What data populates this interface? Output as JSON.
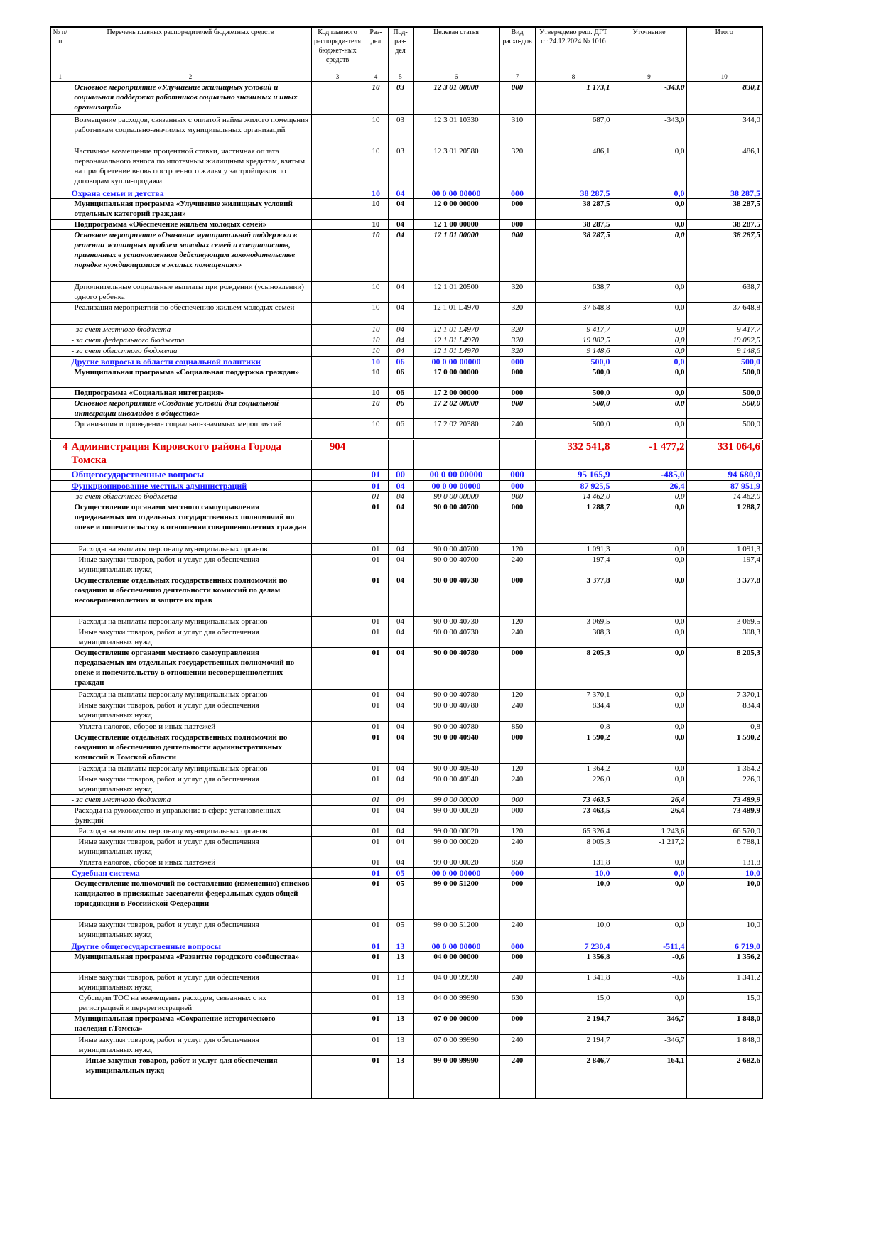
{
  "header": {
    "columns": [
      "№ п/п",
      "Перечень главных распорядителей бюджетных средств",
      "Код главного распоряди-теля бюджет-ных средств",
      "Раз-дел",
      "Под-раз-дел",
      "Целевая статья",
      "Вид расхо-дов",
      "Утверждено реш. ДГТ от 24.12.2024 № 1016",
      "Уточнение",
      "Итого"
    ],
    "numbers": [
      1,
      2,
      3,
      4,
      5,
      6,
      7,
      8,
      9,
      10
    ]
  },
  "rows": [
    {
      "style": "bolditalic",
      "cells": [
        null,
        "Основное мероприятие «Улучшение жилищных условий и социальная поддержка работников социально значимых и иных организаций»",
        null,
        "10",
        "03",
        "12 3 01 00000",
        "000",
        "1 173,1",
        "-343,0",
        "830,1"
      ]
    },
    {
      "style": "plain",
      "cells": [
        null,
        "Возмещение расходов, связанных с оплатой найма жилого помещения работникам социально-значимых муниципальных организаций",
        null,
        "10",
        "03",
        "12 3 01 10330",
        "310",
        "687,0",
        "-343,0",
        "344,0"
      ]
    },
    {
      "style": "plain",
      "cells": [
        null,
        "Частичное возмещение процентной ставки, частичная оплата первоначального взноса по ипотечным жилищным кредитам, взятым на приобретение вновь построенного жилья у застройщиков по договорам купли-продажи",
        null,
        "10",
        "03",
        "12 3 01 20580",
        "320",
        "486,1",
        "0,0",
        "486,1"
      ]
    },
    {
      "style": "section",
      "cells": [
        null,
        "Охрана семьи и детства",
        null,
        "10",
        "04",
        "00 0 00 00000",
        "000",
        "38 287,5",
        "0,0",
        "38 287,5"
      ]
    },
    {
      "style": "bold",
      "cells": [
        null,
        "Муниципальная программа «Улучшение жилищных условий отдельных категорий граждан»",
        null,
        "10",
        "04",
        "12 0 00 00000",
        "000",
        "38 287,5",
        "0,0",
        "38 287,5"
      ]
    },
    {
      "style": "bold",
      "cells": [
        null,
        "Подпрограмма «Обеспечение жильём молодых семей»",
        null,
        "10",
        "04",
        "12 1 00 00000",
        "000",
        "38 287,5",
        "0,0",
        "38 287,5"
      ]
    },
    {
      "style": "bolditalic",
      "cells": [
        null,
        "Основное мероприятие «Оказание муниципальной поддержки в решении жилищных проблем молодых семей и специалистов, признанных в установленном действующим законодательстве порядке нуждающимися в жилых помещениях»",
        null,
        "10",
        "04",
        "12 1 01 00000",
        "000",
        "38 287,5",
        "0,0",
        "38 287,5"
      ]
    },
    {
      "style": "plain",
      "cells": [
        null,
        "Дополнительные социальные выплаты при рождении (усыновлении) одного ребенка",
        null,
        "10",
        "04",
        "12 1 01 20500",
        "320",
        "638,7",
        "0,0",
        "638,7"
      ]
    },
    {
      "style": "plain",
      "cells": [
        null,
        "Реализация мероприятий по обеспечению жильем молодых семей",
        null,
        "10",
        "04",
        "12 1 01 L4970",
        "320",
        "37 648,8",
        "0,0",
        "37 648,8"
      ]
    },
    {
      "style": "italic",
      "cells": [
        null,
        "- за счет местного бюджета",
        null,
        "10",
        "04",
        "12 1 01 L4970",
        "320",
        "9 417,7",
        "0,0",
        "9 417,7"
      ]
    },
    {
      "style": "italic",
      "cells": [
        null,
        "- за счет федерального бюджета",
        null,
        "10",
        "04",
        "12 1 01 L4970",
        "320",
        "19 082,5",
        "0,0",
        "19 082,5"
      ]
    },
    {
      "style": "italic",
      "cells": [
        null,
        "- за счет областного бюджета",
        null,
        "10",
        "04",
        "12 1 01 L4970",
        "320",
        "9 148,6",
        "0,0",
        "9 148,6"
      ]
    },
    {
      "style": "section",
      "cells": [
        null,
        "Другие вопросы в области социальной политики",
        null,
        "10",
        "06",
        "00 0 00 00000",
        "000",
        "500,0",
        "0,0",
        "500,0"
      ]
    },
    {
      "style": "bold",
      "cells": [
        null,
        "Муниципальная программа «Социальная поддержка граждан»",
        null,
        "10",
        "06",
        "17 0 00 00000",
        "000",
        "500,0",
        "0,0",
        "500,0"
      ]
    },
    {
      "style": "bold",
      "cells": [
        null,
        "Подпрограмма «Социальная интеграция»",
        null,
        "10",
        "06",
        "17 2 00 00000",
        "000",
        "500,0",
        "0,0",
        "500,0"
      ]
    },
    {
      "style": "bolditalic",
      "cells": [
        null,
        "Основное мероприятие «Создание условий для социальной интеграции инвалидов в общество»",
        null,
        "10",
        "06",
        "17 2 02 00000",
        "000",
        "500,0",
        "0,0",
        "500,0"
      ]
    },
    {
      "style": "plain",
      "cells": [
        null,
        "Организация и проведение социально-значимых мероприятий",
        null,
        "10",
        "06",
        "17 2 02 20380",
        "240",
        "500,0",
        "0,0",
        "500,0"
      ]
    },
    {
      "style": "agency",
      "cells": [
        "4",
        "Администрация Кировского района Города Томска",
        "904",
        null,
        null,
        null,
        null,
        "332 541,8",
        "-1 477,2",
        "331 064,6"
      ]
    },
    {
      "style": "section-big",
      "cells": [
        null,
        "Общегосударственные вопросы",
        null,
        "01",
        "00",
        "00 0 00 00000",
        "000",
        "95 165,9",
        "-485,0",
        "94 680,9"
      ]
    },
    {
      "style": "section",
      "cells": [
        null,
        "Функционирование местных администраций",
        null,
        "01",
        "04",
        "00 0 00 00000",
        "000",
        "87 925,5",
        "26,4",
        "87 951,9"
      ]
    },
    {
      "style": "italic",
      "cells": [
        null,
        "- за счет областного бюджета",
        null,
        "01",
        "04",
        "90 0 00 00000",
        "000",
        "14 462,0",
        "0,0",
        "14 462,0"
      ]
    },
    {
      "style": "bold",
      "cells": [
        null,
        "Осуществление органами местного самоуправления передаваемых им отдельных государственных полномочий по опеке и попечительству в отношении совершеннолетних граждан",
        null,
        "01",
        "04",
        "90 0 00 40700",
        "000",
        "1 288,7",
        "0,0",
        "1 288,7"
      ]
    },
    {
      "style": "plain2",
      "cells": [
        null,
        "Расходы на выплаты персоналу муниципальных органов",
        null,
        "01",
        "04",
        "90 0 00 40700",
        "120",
        "1 091,3",
        "0,0",
        "1 091,3"
      ]
    },
    {
      "style": "plain2",
      "cells": [
        null,
        "Иные закупки товаров, работ и услуг для обеспечения муниципальных нужд",
        null,
        "01",
        "04",
        "90 0 00 40700",
        "240",
        "197,4",
        "0,0",
        "197,4"
      ]
    },
    {
      "style": "bold",
      "cells": [
        null,
        "Осуществление отдельных государственных полномочий по созданию и обеспечению деятельности комиссий по делам несовершеннолетних и защите их прав",
        null,
        "01",
        "04",
        "90 0 00 40730",
        "000",
        "3 377,8",
        "0,0",
        "3 377,8"
      ]
    },
    {
      "style": "plain2",
      "cells": [
        null,
        "Расходы на выплаты персоналу муниципальных органов",
        null,
        "01",
        "04",
        "90 0 00 40730",
        "120",
        "3 069,5",
        "0,0",
        "3 069,5"
      ]
    },
    {
      "style": "plain2",
      "cells": [
        null,
        "Иные закупки товаров, работ и услуг для обеспечения муниципальных нужд",
        null,
        "01",
        "04",
        "90 0 00 40730",
        "240",
        "308,3",
        "0,0",
        "308,3"
      ]
    },
    {
      "style": "bold",
      "cells": [
        null,
        "Осуществление органами местного самоуправления передаваемых им отдельных государственных полномочий по опеке и попечительству в отношении несовершеннолетних граждан",
        null,
        "01",
        "04",
        "90 0 00 40780",
        "000",
        "8 205,3",
        "0,0",
        "8 205,3"
      ]
    },
    {
      "style": "plain2",
      "cells": [
        null,
        "Расходы на выплаты персоналу муниципальных органов",
        null,
        "01",
        "04",
        "90 0 00 40780",
        "120",
        "7 370,1",
        "0,0",
        "7 370,1"
      ]
    },
    {
      "style": "plain2",
      "cells": [
        null,
        "Иные закупки товаров, работ и услуг для обеспечения муниципальных нужд",
        null,
        "01",
        "04",
        "90 0 00 40780",
        "240",
        "834,4",
        "0,0",
        "834,4"
      ]
    },
    {
      "style": "plain2",
      "cells": [
        null,
        "Уплата налогов, сборов и иных платежей",
        null,
        "01",
        "04",
        "90 0 00 40780",
        "850",
        "0,8",
        "0,0",
        "0,8"
      ]
    },
    {
      "style": "bold",
      "cells": [
        null,
        "Осуществление отдельных государственных полномочий по созданию и обеспечению деятельности административных комиссий в Томской области",
        null,
        "01",
        "04",
        "90 0 00 40940",
        "000",
        "1 590,2",
        "0,0",
        "1 590,2"
      ]
    },
    {
      "style": "plain2",
      "cells": [
        null,
        "Расходы на выплаты персоналу муниципальных органов",
        null,
        "01",
        "04",
        "90 0 00 40940",
        "120",
        "1 364,2",
        "0,0",
        "1 364,2"
      ]
    },
    {
      "style": "plain2",
      "cells": [
        null,
        "Иные закупки товаров, работ и услуг для обеспечения муниципальных нужд",
        null,
        "01",
        "04",
        "90 0 00 40940",
        "240",
        "226,0",
        "0,0",
        "226,0"
      ]
    },
    {
      "style": "italic-sum",
      "cells": [
        null,
        "- за счет местного бюджета",
        null,
        "01",
        "04",
        "99 0 00 00000",
        "000",
        "73 463,5",
        "26,4",
        "73 489,9"
      ]
    },
    {
      "style": "plain-sum",
      "cells": [
        null,
        "Расходы на руководство и управление в сфере установленных функций",
        null,
        "01",
        "04",
        "99 0 00 00020",
        "000",
        "73 463,5",
        "26,4",
        "73 489,9"
      ]
    },
    {
      "style": "plain2",
      "cells": [
        null,
        "Расходы на выплаты персоналу муниципальных органов",
        null,
        "01",
        "04",
        "99 0 00 00020",
        "120",
        "65 326,4",
        "1 243,6",
        "66 570,0"
      ]
    },
    {
      "style": "plain2",
      "cells": [
        null,
        "Иные закупки товаров, работ и услуг для обеспечения муниципальных нужд",
        null,
        "01",
        "04",
        "99 0 00 00020",
        "240",
        "8 005,3",
        "-1 217,2",
        "6 788,1"
      ]
    },
    {
      "style": "plain2",
      "cells": [
        null,
        "Уплата налогов, сборов и иных платежей",
        null,
        "01",
        "04",
        "99 0 00 00020",
        "850",
        "131,8",
        "0,0",
        "131,8"
      ]
    },
    {
      "style": "section",
      "cells": [
        null,
        "Судебная система",
        null,
        "01",
        "05",
        "00 0 00 00000",
        "000",
        "10,0",
        "0,0",
        "10,0"
      ]
    },
    {
      "style": "bold",
      "cells": [
        null,
        "Осуществление полномочий по составлению (изменению) списков кандидатов в присяжные заседатели федеральных судов общей юрисдикции в Российской Федерации",
        null,
        "01",
        "05",
        "99 0 00 51200",
        "000",
        "10,0",
        "0,0",
        "10,0"
      ]
    },
    {
      "style": "plain2",
      "cells": [
        null,
        "Иные закупки товаров, работ и услуг для обеспечения муниципальных нужд",
        null,
        "01",
        "05",
        "99 0 00 51200",
        "240",
        "10,0",
        "0,0",
        "10,0"
      ]
    },
    {
      "style": "section",
      "cells": [
        null,
        "Другие общегосударственные вопросы",
        null,
        "01",
        "13",
        "00 0 00 00000",
        "000",
        "7 230,4",
        "-511,4",
        "6 719,0"
      ]
    },
    {
      "style": "bold",
      "cells": [
        null,
        "Муниципальная программа «Развитие городского сообщества»",
        null,
        "01",
        "13",
        "04 0 00 00000",
        "000",
        "1 356,8",
        "-0,6",
        "1 356,2"
      ]
    },
    {
      "style": "plain2",
      "cells": [
        null,
        "Иные закупки товаров, работ и услуг для обеспечения муниципальных нужд",
        null,
        "01",
        "13",
        "04 0 00 99990",
        "240",
        "1 341,8",
        "-0,6",
        "1 341,2"
      ]
    },
    {
      "style": "plain2",
      "cells": [
        null,
        "Субсидии ТОС на возмещение расходов, связанных с их регистрацией и перерегистрацией",
        null,
        "01",
        "13",
        "04 0 00 99990",
        "630",
        "15,0",
        "0,0",
        "15,0"
      ]
    },
    {
      "style": "bold",
      "cells": [
        null,
        "Муниципальная программа «Сохранение исторического наследия г.Томска»",
        null,
        "01",
        "13",
        "07 0 00 00000",
        "000",
        "2 194,7",
        "-346,7",
        "1 848,0"
      ]
    },
    {
      "style": "plain2",
      "cells": [
        null,
        "Иные закупки товаров, работ и услуг для обеспечения муниципальных нужд",
        null,
        "01",
        "13",
        "07 0 00 99990",
        "240",
        "2 194,7",
        "-346,7",
        "1 848,0"
      ]
    },
    {
      "style": "bold2",
      "cells": [
        null,
        "Иные закупки товаров, работ и услуг для обеспечения муниципальных нужд",
        null,
        "01",
        "13",
        "99 0 00 99990",
        "240",
        "2 846,7",
        "-164,1",
        "2 682,6"
      ]
    }
  ]
}
